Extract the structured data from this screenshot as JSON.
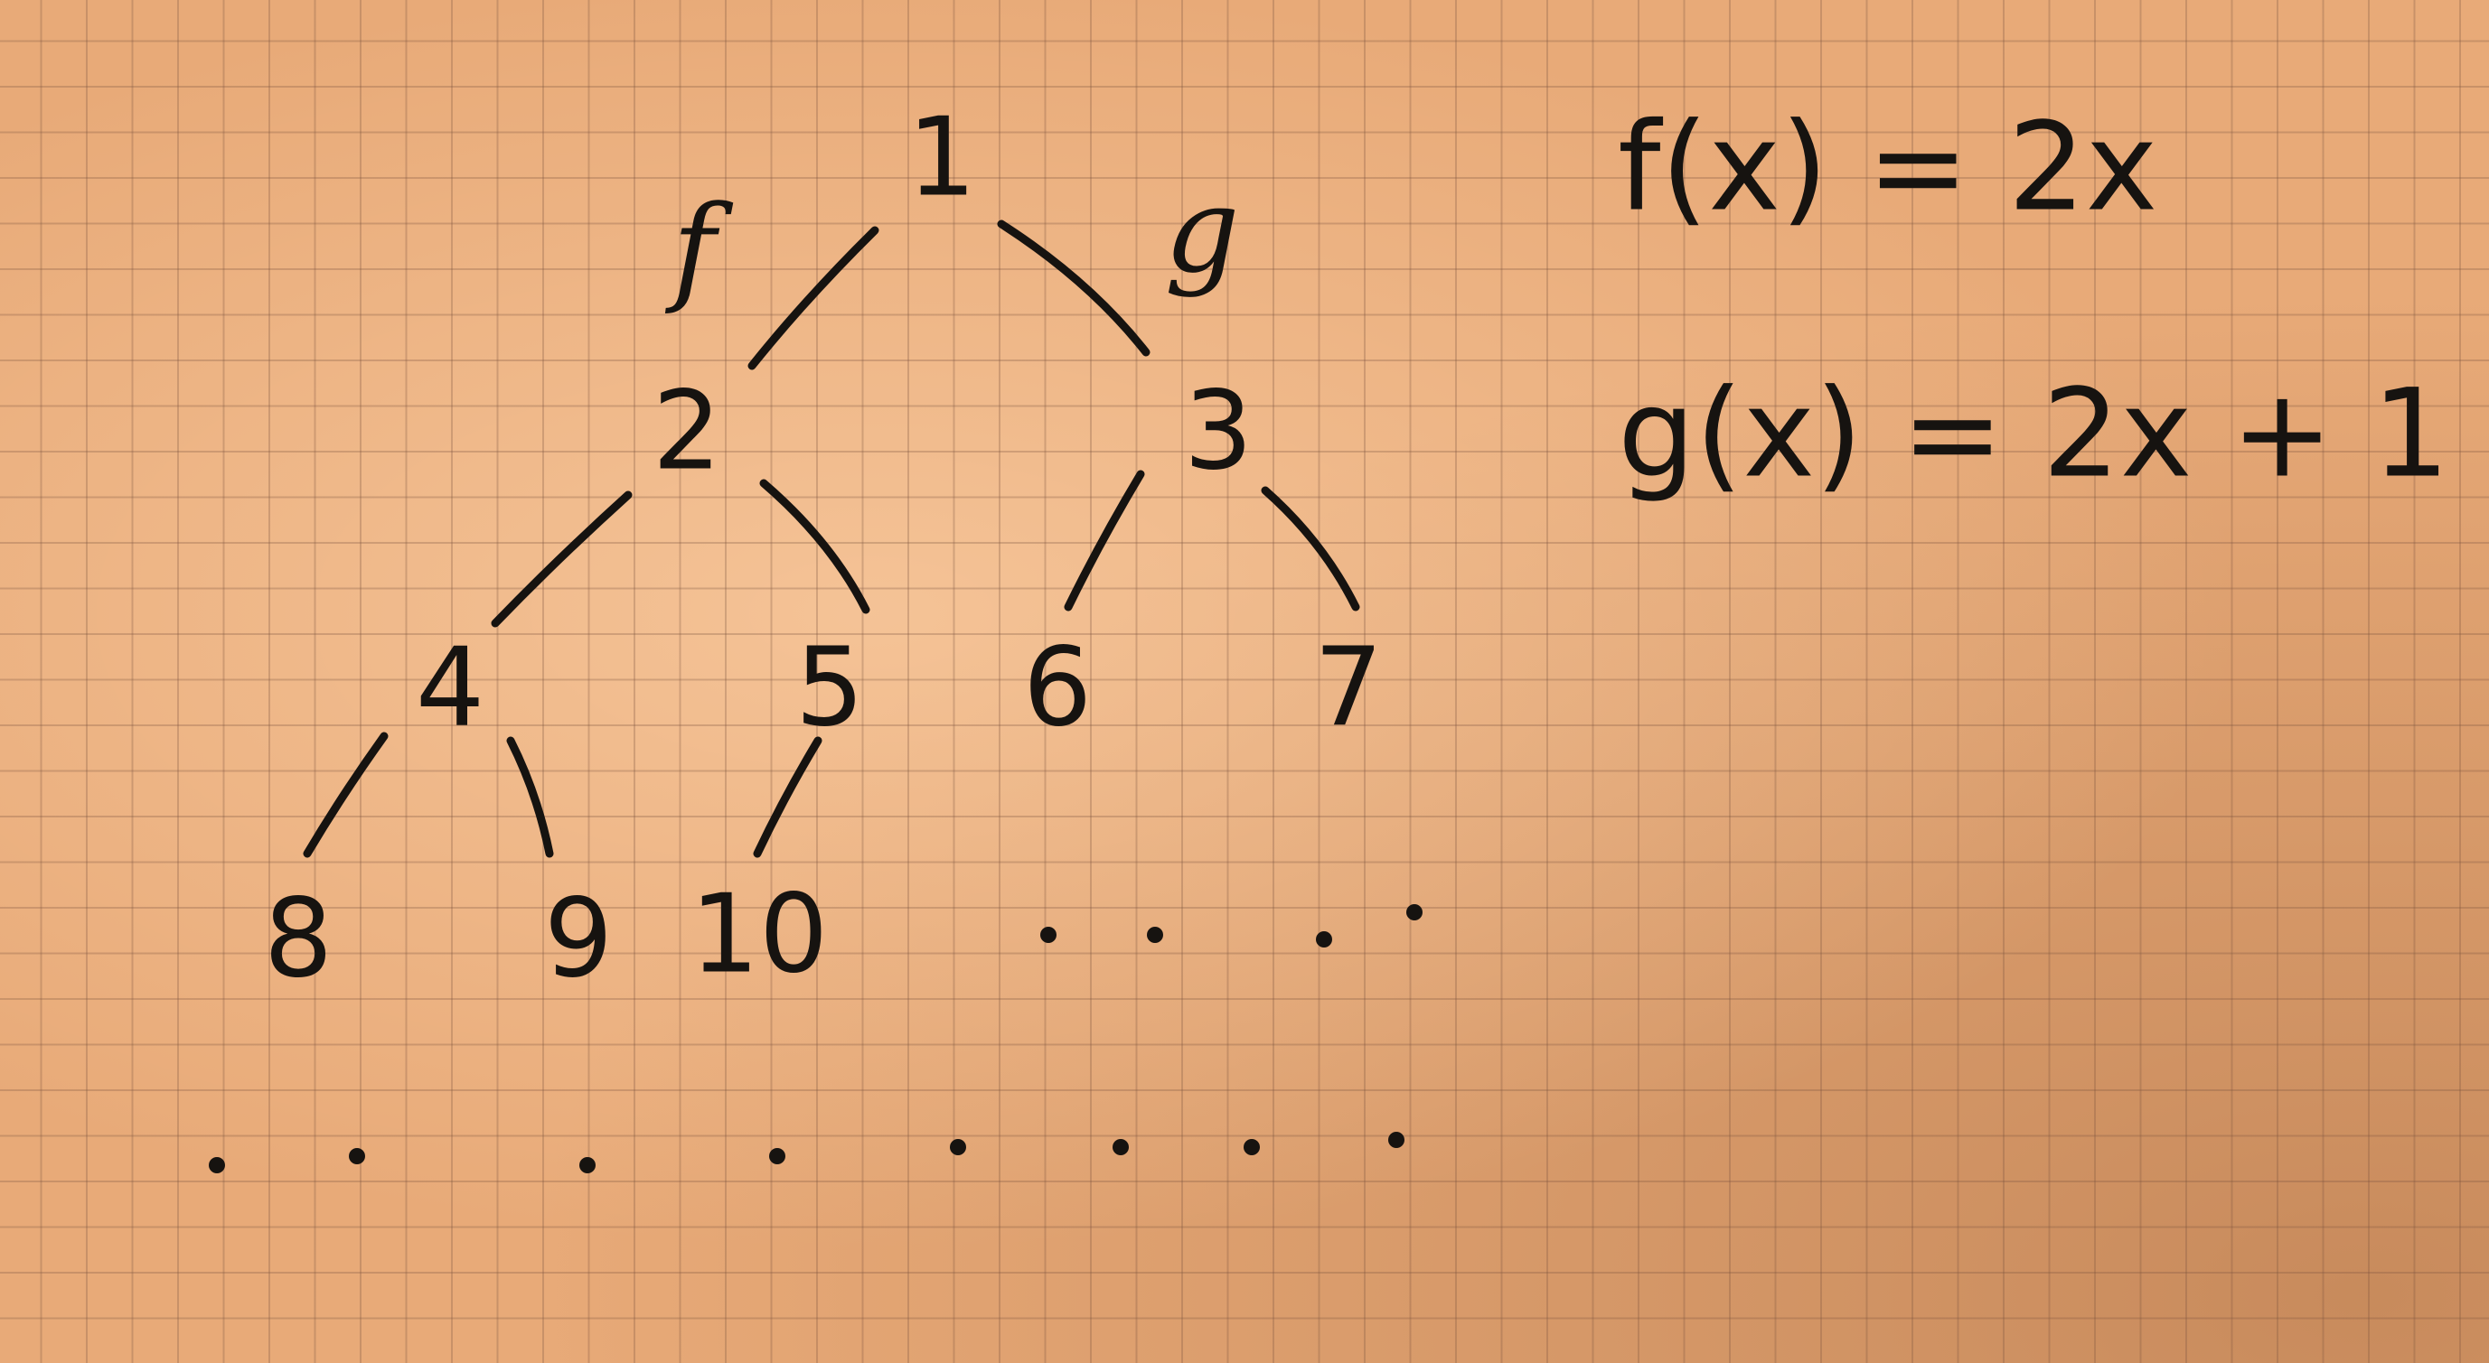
{
  "tree": {
    "nodes": [
      {
        "id": "n1",
        "label": "1"
      },
      {
        "id": "n2",
        "label": "2"
      },
      {
        "id": "n3",
        "label": "3"
      },
      {
        "id": "n4",
        "label": "4"
      },
      {
        "id": "n5",
        "label": "5"
      },
      {
        "id": "n6",
        "label": "6"
      },
      {
        "id": "n7",
        "label": "7"
      },
      {
        "id": "n8",
        "label": "8"
      },
      {
        "id": "n9",
        "label": "9"
      },
      {
        "id": "n10",
        "label": "10"
      }
    ],
    "edges": [
      {
        "from": "n1",
        "to": "n2",
        "label": "f"
      },
      {
        "from": "n1",
        "to": "n3",
        "label": "g"
      },
      {
        "from": "n2",
        "to": "n4"
      },
      {
        "from": "n2",
        "to": "n5"
      },
      {
        "from": "n3",
        "to": "n6"
      },
      {
        "from": "n3",
        "to": "n7"
      },
      {
        "from": "n4",
        "to": "n8"
      },
      {
        "from": "n4",
        "to": "n9"
      },
      {
        "from": "n5",
        "to": "n10"
      }
    ]
  },
  "formulas": {
    "f": "f(x) = 2x",
    "g": "g(x) = 2x + 1"
  }
}
